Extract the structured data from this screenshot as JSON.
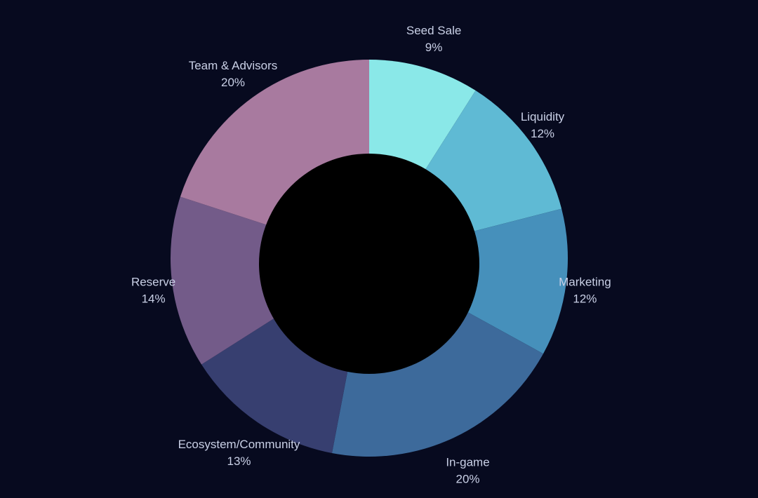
{
  "chart_data": {
    "type": "pie",
    "style": "donut",
    "title": "",
    "background_color": "#070a1f",
    "hole_color": "#000000",
    "label_color": "#c9d0e6",
    "slices": [
      {
        "label": "Seed Sale",
        "pct_label": "9%",
        "value": 9,
        "color": "#8ae8e8"
      },
      {
        "label": "Liquidity",
        "pct_label": "12%",
        "value": 12,
        "color": "#5fbad4"
      },
      {
        "label": "Marketing",
        "pct_label": "12%",
        "value": 12,
        "color": "#4690bb"
      },
      {
        "label": "In-game",
        "pct_label": "20%",
        "value": 20,
        "color": "#3d6a9b"
      },
      {
        "label": "Ecosystem/Community",
        "pct_label": "13%",
        "value": 13,
        "color": "#373f70"
      },
      {
        "label": "Reserve",
        "pct_label": "14%",
        "value": 14,
        "color": "#735b89"
      },
      {
        "label": "Team & Advisors",
        "pct_label": "20%",
        "value": 20,
        "color": "#a87a9f"
      }
    ]
  }
}
